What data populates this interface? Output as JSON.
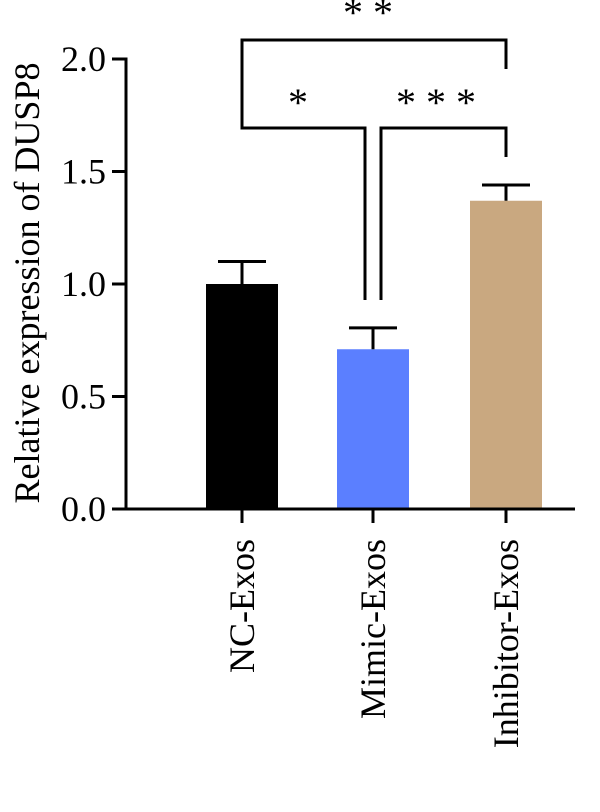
{
  "chart_data": {
    "type": "bar",
    "title": "",
    "ylabel": "Relative expression of DUSP8",
    "xlabel": "",
    "ylim": [
      0,
      2.0
    ],
    "yticks": [
      0.0,
      0.5,
      1.0,
      1.5,
      2.0
    ],
    "ytick_labels": [
      "0.0",
      "0.5",
      "1.0",
      "1.5",
      "2.0"
    ],
    "categories": [
      "NC-Exos",
      "Mimic-Exos",
      "Inhibitor-Exos"
    ],
    "values": [
      1.0,
      0.71,
      1.37
    ],
    "errors": [
      0.1,
      0.095,
      0.07
    ],
    "colors": [
      "#000000",
      "#5b7fff",
      "#c9a880"
    ],
    "grid": false,
    "legend": "none",
    "significance": [
      {
        "from": 0,
        "to": 1,
        "label": "*"
      },
      {
        "from": 1,
        "to": 2,
        "label": "***"
      },
      {
        "from": 0,
        "to": 2,
        "label": "**"
      }
    ]
  }
}
